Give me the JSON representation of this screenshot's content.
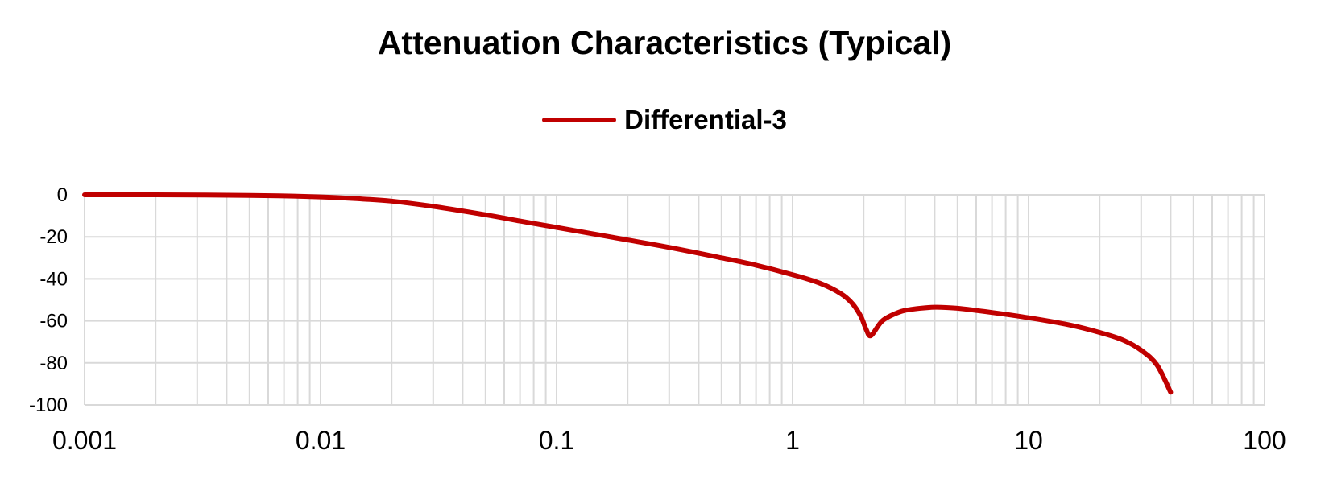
{
  "chart_data": {
    "type": "line",
    "title": "Attenuation Characteristics (Typical)",
    "xlabel": "",
    "ylabel": "",
    "x_scale": "log",
    "xlim": [
      0.001,
      100
    ],
    "ylim": [
      -100,
      0
    ],
    "x_ticks": [
      "0.001",
      "0.01",
      "0.1",
      "1",
      "10",
      "100"
    ],
    "y_ticks": [
      "0",
      "-20",
      "-40",
      "-60",
      "-80",
      "-100"
    ],
    "grid": true,
    "legend": "top-center",
    "series": [
      {
        "name": "Differential-3",
        "color": "#c00000",
        "x": [
          0.001,
          0.002,
          0.005,
          0.01,
          0.015,
          0.02,
          0.03,
          0.05,
          0.07,
          0.1,
          0.2,
          0.3,
          0.5,
          0.7,
          1.0,
          1.3,
          1.6,
          1.8,
          1.95,
          2.05,
          2.15,
          2.4,
          2.8,
          3.2,
          4.0,
          5.0,
          7.0,
          10,
          15,
          20,
          25,
          30,
          35,
          40
        ],
        "y": [
          0,
          0,
          -0.3,
          -1,
          -2,
          -3,
          -5.5,
          -9.5,
          -12.5,
          -15.5,
          -21.5,
          -25,
          -30,
          -33.5,
          -38,
          -42,
          -47,
          -52,
          -58,
          -64,
          -67,
          -60,
          -56,
          -54.5,
          -53.5,
          -54,
          -56,
          -58.5,
          -62,
          -65.5,
          -69,
          -74,
          -81,
          -94
        ]
      }
    ]
  }
}
